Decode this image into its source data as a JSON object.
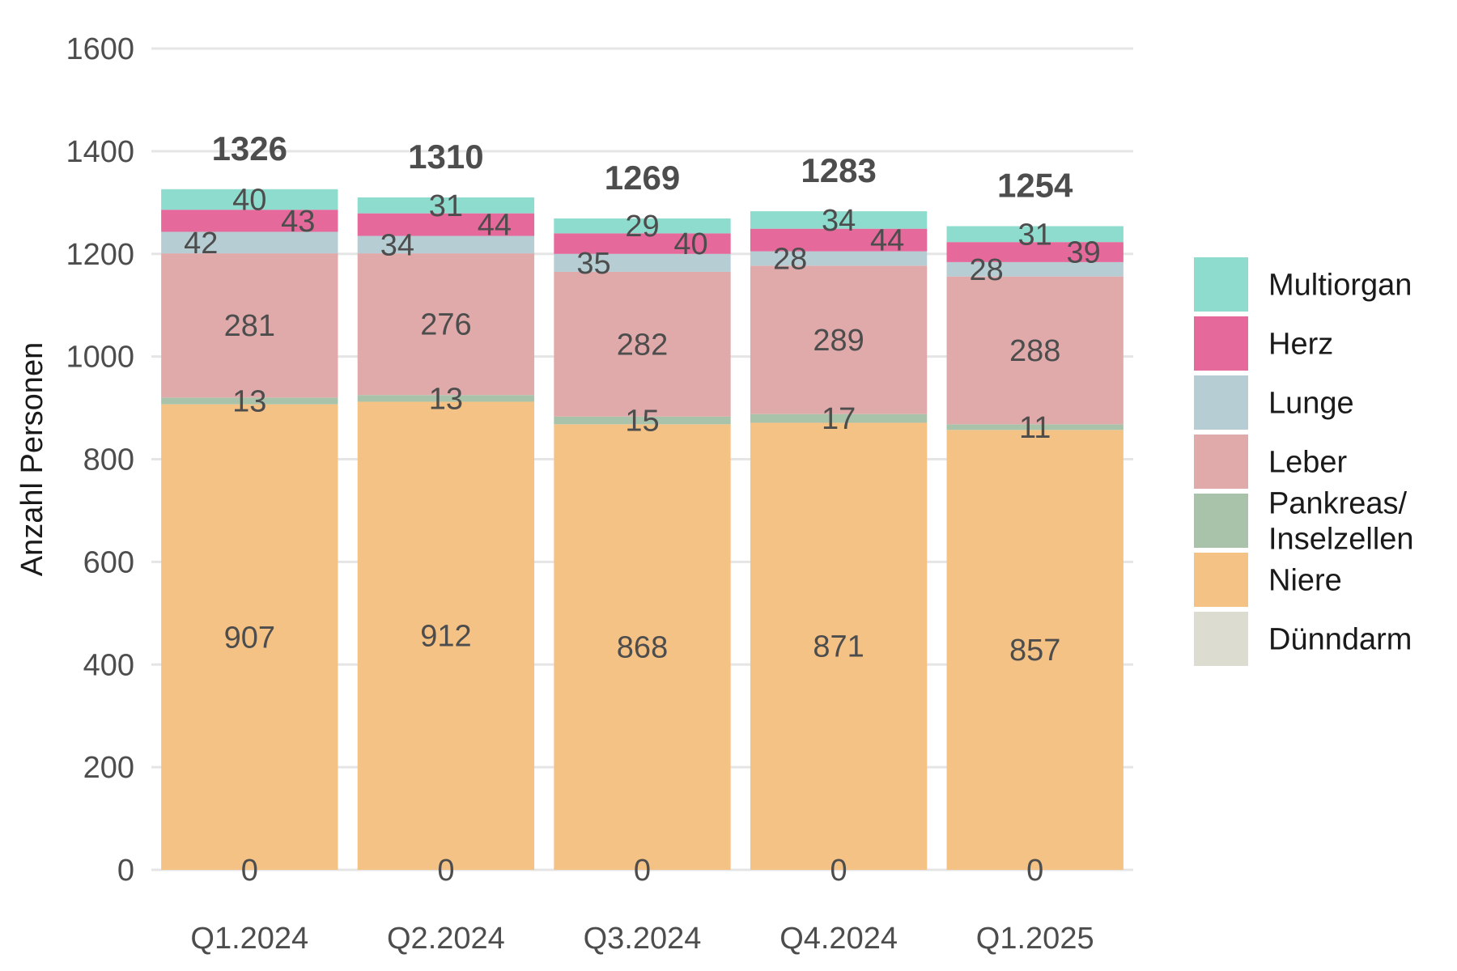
{
  "chart_data": {
    "type": "bar",
    "stacked": true,
    "ylabel": "Anzahl Personen",
    "xlabel": "",
    "ylim": [
      0,
      1600
    ],
    "yticks": [
      0,
      200,
      400,
      600,
      800,
      1000,
      1200,
      1400,
      1600
    ],
    "grid": true,
    "legend_position": "right",
    "categories": [
      "Q1.2024",
      "Q2.2024",
      "Q3.2024",
      "Q4.2024",
      "Q1.2025"
    ],
    "totals": [
      1326,
      1310,
      1269,
      1283,
      1254
    ],
    "series": [
      {
        "name": "Dünndarm",
        "color": "#dcdcd0",
        "values": [
          0,
          0,
          0,
          0,
          0
        ]
      },
      {
        "name": "Niere",
        "color": "#f5c286",
        "values": [
          907,
          912,
          868,
          871,
          857
        ]
      },
      {
        "name": "Pankreas/\nInselzellen",
        "color": "#a8c3aa",
        "values": [
          13,
          13,
          15,
          17,
          11
        ]
      },
      {
        "name": "Leber",
        "color": "#e0aaaa",
        "values": [
          281,
          276,
          282,
          289,
          288
        ]
      },
      {
        "name": "Lunge",
        "color": "#b5cdd3",
        "values": [
          42,
          34,
          35,
          28,
          28
        ]
      },
      {
        "name": "Herz",
        "color": "#e5699a",
        "values": [
          43,
          44,
          40,
          44,
          39
        ]
      },
      {
        "name": "Multiorgan",
        "color": "#8ddccd",
        "values": [
          40,
          31,
          29,
          34,
          31
        ]
      }
    ],
    "legend_order": [
      "Multiorgan",
      "Herz",
      "Lunge",
      "Leber",
      "Pankreas/\nInselzellen",
      "Niere",
      "Dünndarm"
    ]
  }
}
